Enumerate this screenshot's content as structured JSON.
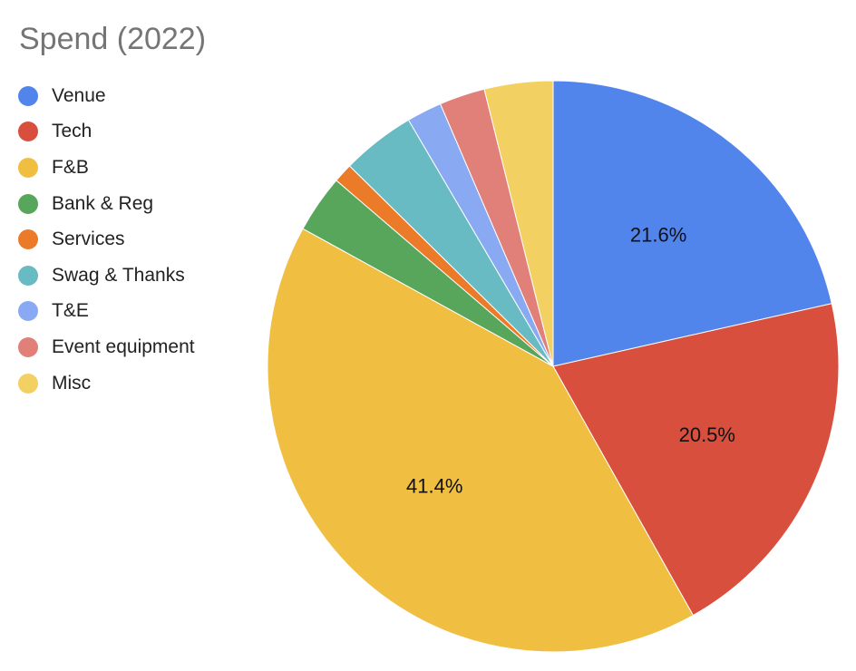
{
  "chart_data": {
    "type": "pie",
    "title": "Spend (2022)",
    "legend_position": "left",
    "start_angle_deg": 0,
    "direction": "clockwise",
    "slices": [
      {
        "name": "Venue",
        "value": 21.6,
        "label": "21.6%",
        "color": "#5285EC"
      },
      {
        "name": "Tech",
        "value": 20.5,
        "label": "20.5%",
        "color": "#D94F3D"
      },
      {
        "name": "F&B",
        "value": 41.4,
        "label": "41.4%",
        "color": "#F0BE41"
      },
      {
        "name": "Bank & Reg",
        "value": 3.3,
        "label": "",
        "color": "#58A65C"
      },
      {
        "name": "Services",
        "value": 1.1,
        "label": "",
        "color": "#EC7B29"
      },
      {
        "name": "Swag & Thanks",
        "value": 4.2,
        "label": "",
        "color": "#69BBC3"
      },
      {
        "name": "T&E",
        "value": 2.0,
        "label": "",
        "color": "#89AAF2"
      },
      {
        "name": "Event equipment",
        "value": 2.6,
        "label": "",
        "color": "#E18078"
      },
      {
        "name": "Misc",
        "value": 3.9,
        "label": "",
        "color": "#F3D062"
      }
    ]
  }
}
